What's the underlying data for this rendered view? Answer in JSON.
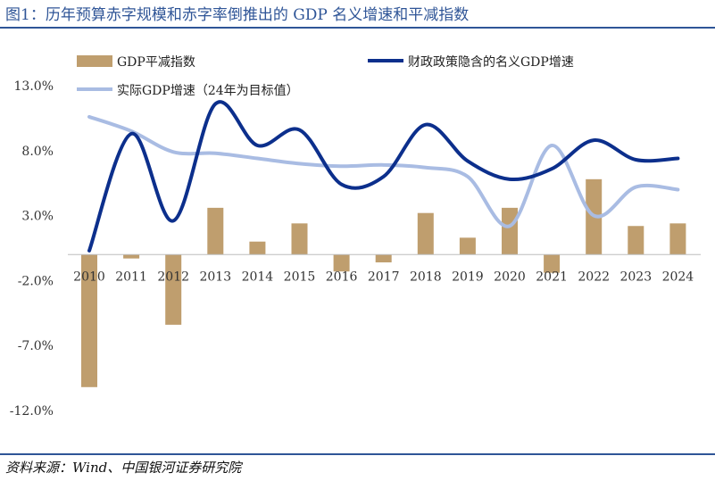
{
  "header": {
    "title": "图1：历年预算赤字规模和赤字率倒推出的 GDP 名义增速和平减指数"
  },
  "footer": {
    "source": "资料来源：Wind、中国银河证券研究院"
  },
  "colors": {
    "accent": "#2f5597",
    "bar": "#bf9e6e",
    "dark_line": "#0c2f8c",
    "light_line": "#a9bce3"
  },
  "chart_data": {
    "type": "bar",
    "categories": [
      "2010",
      "2011",
      "2012",
      "2013",
      "2014",
      "2015",
      "2016",
      "2017",
      "2018",
      "2019",
      "2020",
      "2021",
      "2022",
      "2023",
      "2024"
    ],
    "ylim": [
      -12,
      13
    ],
    "yticks": [
      "13.0%",
      "8.0%",
      "3.0%",
      "-2.0%",
      "-7.0%",
      "-12.0%"
    ],
    "ytick_values": [
      13,
      8,
      3,
      -2,
      -7,
      -12
    ],
    "grid": false,
    "legend_position": "top",
    "series": [
      {
        "name": "GDP平减指数",
        "type": "bar",
        "values": [
          -10.2,
          -0.3,
          -5.4,
          3.6,
          1.0,
          2.4,
          -1.3,
          -0.6,
          3.2,
          1.3,
          3.6,
          -1.4,
          5.8,
          2.2,
          2.4
        ]
      },
      {
        "name": "财政政策隐含的名义GDP增速",
        "type": "line",
        "values": [
          0.3,
          9.3,
          2.6,
          11.6,
          8.4,
          9.6,
          5.4,
          6.0,
          10.0,
          7.2,
          5.8,
          6.6,
          8.8,
          7.3,
          7.4
        ]
      },
      {
        "name": "实际GDP增速（24年为目标值）",
        "type": "line",
        "values": [
          10.6,
          9.5,
          7.9,
          7.8,
          7.4,
          7.0,
          6.8,
          6.9,
          6.7,
          6.0,
          2.2,
          8.4,
          3.0,
          5.2,
          5.0
        ]
      }
    ]
  }
}
